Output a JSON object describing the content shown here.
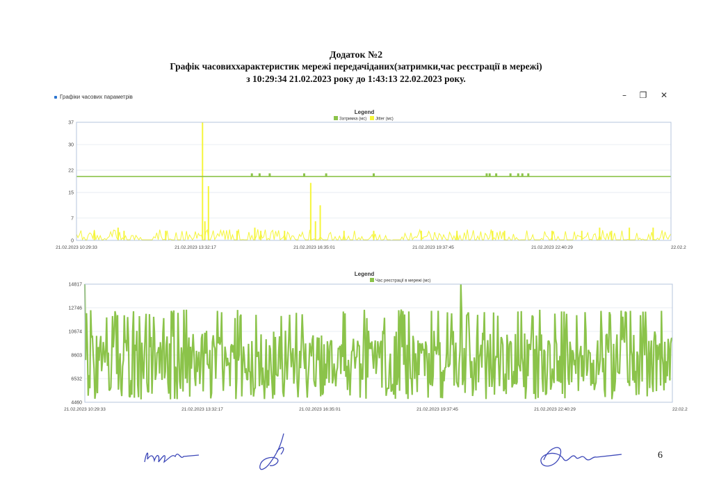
{
  "header": {
    "line1": "Додаток №2",
    "line2": "Графік часовиххарактеристик мережі передачіданих(затримки,час реєстрації в мережі)",
    "line3": "з 10:29:34  21.02.2023  року до  1:43:13  22.02.2023 року."
  },
  "window": {
    "title": "Графіки часових параметрів",
    "minimize_icon": "minimize-icon",
    "restore_icon": "restore-icon",
    "close_icon": "close-icon"
  },
  "page_number": "6",
  "colors": {
    "green": "#8bc34a",
    "yellow": "#f5f53a",
    "axis": "#888888",
    "border": "#b6c4dc",
    "grid": "#e3e8ef"
  },
  "chart_data": [
    {
      "type": "line",
      "legend_title": "Legend",
      "y_ticks": [
        "0",
        "7",
        "15",
        "22",
        "30",
        "37"
      ],
      "ylim": [
        0,
        37
      ],
      "x_tick_labels": [
        "21.02.2023 10:29:33",
        "21.02.2023 13:32:17",
        "21.02.2023 16:35:01",
        "21.02.2023 19:37:45",
        "21.02.2023 22:40:29",
        "22.02.2"
      ],
      "series": [
        {
          "name": "Затримка (мс)",
          "color": "#8bc34a",
          "baseline": 20,
          "peaks": [
            [
              0.295,
              21
            ],
            [
              0.308,
              21
            ],
            [
              0.325,
              21
            ],
            [
              0.383,
              21
            ],
            [
              0.42,
              21
            ],
            [
              0.5,
              21
            ],
            [
              0.69,
              21
            ],
            [
              0.695,
              21
            ],
            [
              0.706,
              21
            ],
            [
              0.73,
              21
            ],
            [
              0.743,
              21
            ],
            [
              0.75,
              21
            ],
            [
              0.76,
              21
            ]
          ]
        },
        {
          "name": "Jitter (мс)",
          "color": "#f5f53a",
          "spikes": [
            [
              0.212,
              37
            ],
            [
              0.222,
              17
            ],
            [
              0.216,
              6
            ],
            [
              0.394,
              18
            ],
            [
              0.41,
              11
            ],
            [
              0.402,
              6
            ],
            [
              0.03,
              3
            ],
            [
              0.07,
              4
            ],
            [
              0.08,
              3
            ],
            [
              0.15,
              3
            ],
            [
              0.27,
              3
            ],
            [
              0.3,
              4
            ],
            [
              0.31,
              3
            ],
            [
              0.35,
              3
            ],
            [
              0.45,
              3
            ],
            [
              0.5,
              3
            ],
            [
              0.58,
              3
            ],
            [
              0.64,
              3
            ],
            [
              0.7,
              3
            ],
            [
              0.72,
              3
            ],
            [
              0.8,
              3
            ],
            [
              0.85,
              3
            ],
            [
              0.88,
              4
            ],
            [
              0.9,
              3
            ],
            [
              0.93,
              4
            ],
            [
              0.97,
              4
            ]
          ]
        }
      ]
    },
    {
      "type": "line",
      "legend_title": "Legend",
      "y_ticks": [
        "4460",
        "6532",
        "8603",
        "10674",
        "12746",
        "14817"
      ],
      "ylim": [
        4460,
        14817
      ],
      "x_tick_labels": [
        "21.02.2023 10:29:33",
        "21.02.2023 13:32:17",
        "21.02.2023 16:35:01",
        "21.02.2023 19:37:45",
        "21.02.2023 22:40:29",
        "22.02.2"
      ],
      "series": [
        {
          "name": "Час реєстрації в мережі (мс)",
          "color": "#8bc34a",
          "typical_range": [
            5200,
            12600
          ],
          "max": 14817
        }
      ]
    }
  ]
}
